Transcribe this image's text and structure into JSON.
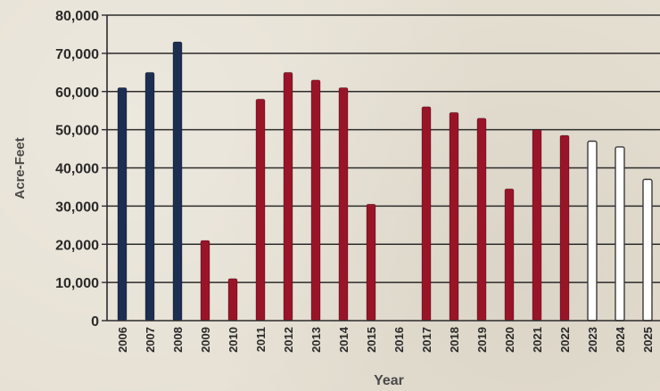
{
  "chart_data": {
    "type": "bar",
    "title": "",
    "xlabel": "Year",
    "ylabel": "Acre-Feet",
    "ylim": [
      0,
      80000
    ],
    "yticks": [
      "0",
      "10,000",
      "20,000",
      "30,000",
      "40,000",
      "50,000",
      "60,000",
      "70,000",
      "80,000"
    ],
    "grid": true,
    "categories": [
      "2006",
      "2007",
      "2008",
      "2009",
      "2010",
      "2011",
      "2012",
      "2013",
      "2014",
      "2015",
      "2016",
      "2017",
      "2018",
      "2019",
      "2020",
      "2021",
      "2022",
      "2023",
      "2024",
      "2025"
    ],
    "values": [
      61000,
      65000,
      73000,
      21000,
      11000,
      58000,
      65000,
      63000,
      61000,
      30500,
      null,
      56000,
      54500,
      53000,
      34500,
      50000,
      48500,
      47000,
      45500,
      37000
    ],
    "bar_colors": [
      "#1c2e52",
      "#1c2e52",
      "#1c2e52",
      "#9a1428",
      "#9a1428",
      "#9a1428",
      "#9a1428",
      "#9a1428",
      "#9a1428",
      "#9a1428",
      "#9a1428",
      "#9a1428",
      "#9a1428",
      "#9a1428",
      "#9a1428",
      "#9a1428",
      "#9a1428",
      "#ffffff",
      "#ffffff",
      "#ffffff"
    ]
  }
}
